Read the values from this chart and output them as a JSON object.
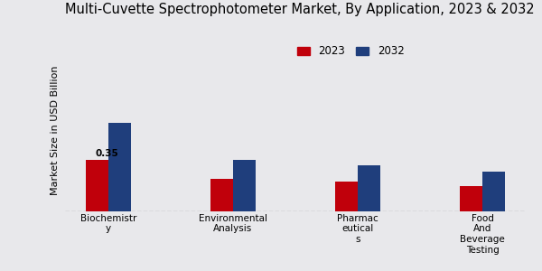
{
  "title": "Multi-Cuvette Spectrophotometer Market, By Application, 2023 & 2032",
  "ylabel": "Market Size in USD Billion",
  "categories": [
    "Biochemistr\ny",
    "Environmental\nAnalysis",
    "Pharmac\neutical\ns",
    "Food\nAnd\nBeverage\nTesting"
  ],
  "values_2023": [
    0.35,
    0.22,
    0.2,
    0.17
  ],
  "values_2032": [
    0.6,
    0.35,
    0.31,
    0.27
  ],
  "color_2023": "#c0000b",
  "color_2032": "#1f3e7c",
  "annotation_text": "0.35",
  "annotation_index": 0,
  "background_color": "#e8e8eb",
  "legend_labels": [
    "2023",
    "2032"
  ],
  "ylim": [
    0,
    1.1
  ],
  "bar_width": 0.18,
  "bar_gap": 0.0,
  "title_fontsize": 10.5,
  "axis_label_fontsize": 8,
  "tick_fontsize": 7.5,
  "legend_fontsize": 8.5,
  "annot_fontsize": 7.5
}
